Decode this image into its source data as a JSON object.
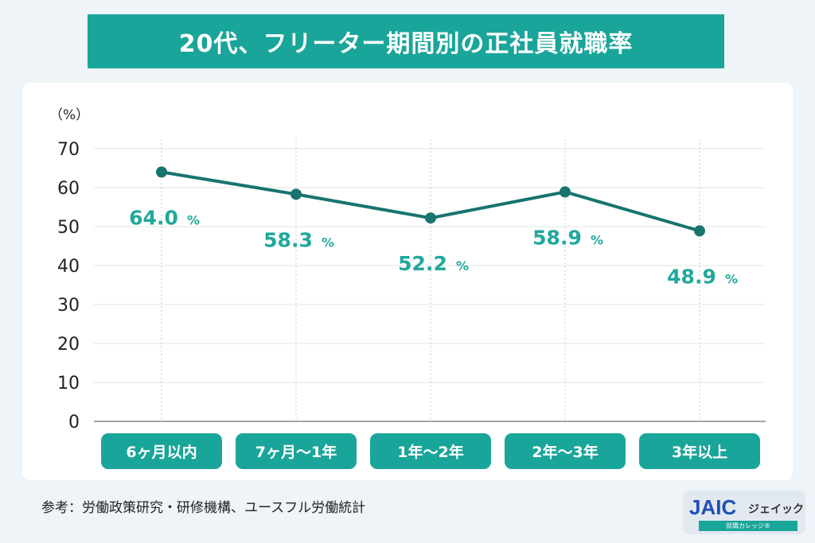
{
  "chart_data": {
    "type": "line",
    "title": "20代、フリーター期間別の正社員就職率",
    "ylabel": "（%）",
    "categories": [
      "6ヶ月以内",
      "7ヶ月〜1年",
      "1年〜2年",
      "2年〜3年",
      "3年以上"
    ],
    "values": [
      64.0,
      58.3,
      52.2,
      58.9,
      48.9
    ],
    "data_labels": [
      "64.0",
      "58.3",
      "52.2",
      "58.9",
      "48.9"
    ],
    "label_unit": "%",
    "yticks": [
      "0",
      "10",
      "20",
      "30",
      "40",
      "50",
      "60",
      "70"
    ],
    "ylim": [
      0,
      70
    ],
    "grid": true,
    "colors": {
      "line": "#17746e",
      "label": "#20a89c",
      "accent": "#1aa59a"
    }
  },
  "source": "参考：労働政策研究・研修機構、ユースフル労働統計",
  "logo": {
    "brand": "JAIC",
    "name": "ジェイック",
    "sub": "就職カレッジ®"
  }
}
